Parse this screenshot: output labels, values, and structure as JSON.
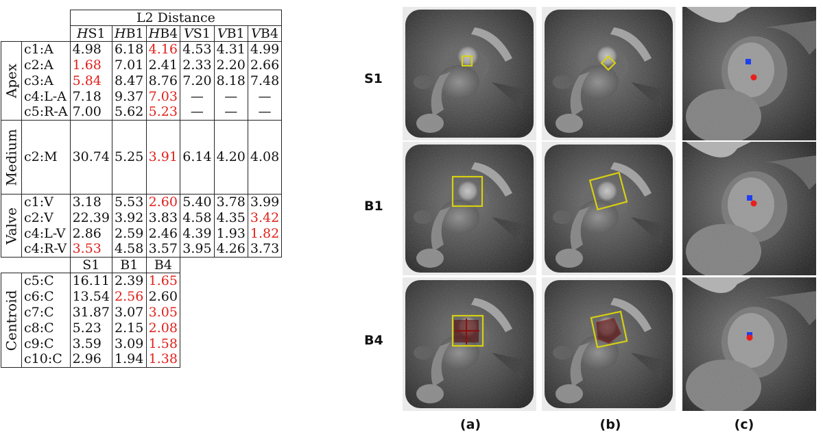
{
  "table": {
    "header_title": "L2 Distance",
    "col_headers": [
      {
        "prefix": "H",
        "suffix": "S1"
      },
      {
        "prefix": "H",
        "suffix": "B1"
      },
      {
        "prefix": "H",
        "suffix": "B4"
      },
      {
        "prefix": "V",
        "suffix": "S1"
      },
      {
        "prefix": "V",
        "suffix": "B1"
      },
      {
        "prefix": "V",
        "suffix": "B4"
      }
    ],
    "groups": {
      "apex": "Apex",
      "medium": "Medium",
      "valve": "Valve",
      "centroid": "Centroid"
    },
    "apex_rows": [
      {
        "label": "c1:A",
        "values": [
          "4.98",
          "6.18",
          "4.16",
          "4.53",
          "4.31",
          "4.99"
        ],
        "red": [
          2
        ]
      },
      {
        "label": "c2:A",
        "values": [
          "1.68",
          "7.01",
          "2.41",
          "2.33",
          "2.20",
          "2.66"
        ],
        "red": [
          0
        ]
      },
      {
        "label": "c3:A",
        "values": [
          "5.84",
          "8.47",
          "8.76",
          "7.20",
          "8.18",
          "7.48"
        ],
        "red": [
          0
        ]
      },
      {
        "label": "c4:L-A",
        "values": [
          "7.18",
          "9.37",
          "7.03",
          "—",
          "—",
          "—"
        ],
        "red": [
          2
        ]
      },
      {
        "label": "c5:R-A",
        "values": [
          "7.00",
          "5.62",
          "5.23",
          "—",
          "—",
          "—"
        ],
        "red": [
          2
        ]
      }
    ],
    "medium_rows": [
      {
        "label": "c2:M",
        "values": [
          "30.74",
          "5.25",
          "3.91",
          "6.14",
          "4.20",
          "4.08"
        ],
        "red": [
          2
        ]
      }
    ],
    "valve_rows": [
      {
        "label": "c1:V",
        "values": [
          "3.18",
          "5.53",
          "2.60",
          "5.40",
          "3.78",
          "3.99"
        ],
        "red": [
          2
        ]
      },
      {
        "label": "c2:V",
        "values": [
          "22.39",
          "3.92",
          "3.83",
          "4.58",
          "4.35",
          "3.42"
        ],
        "red": [
          5
        ]
      },
      {
        "label": "c4:L-V",
        "values": [
          "2.86",
          "2.59",
          "2.46",
          "4.39",
          "1.93",
          "1.82"
        ],
        "red": [
          5
        ]
      },
      {
        "label": "c4:R-V",
        "values": [
          "3.53",
          "4.58",
          "3.57",
          "3.95",
          "4.26",
          "3.73"
        ],
        "red": [
          0
        ]
      }
    ],
    "centroid_headers": [
      "S1",
      "B1",
      "B4"
    ],
    "centroid_rows": [
      {
        "label": "c5:C",
        "values": [
          "16.11",
          "2.39",
          "1.65"
        ],
        "red": [
          2
        ]
      },
      {
        "label": "c6:C",
        "values": [
          "13.54",
          "2.56",
          "2.60"
        ],
        "red": [
          1
        ]
      },
      {
        "label": "c7:C",
        "values": [
          "31.87",
          "3.07",
          "3.05"
        ],
        "red": [
          2
        ]
      },
      {
        "label": "c8:C",
        "values": [
          "5.23",
          "2.15",
          "2.08"
        ],
        "red": [
          2
        ]
      },
      {
        "label": "c9:C",
        "values": [
          "3.59",
          "3.09",
          "1.58"
        ],
        "red": [
          2
        ]
      },
      {
        "label": "c10:C",
        "values": [
          "2.96",
          "1.94",
          "1.38"
        ],
        "red": [
          2
        ]
      }
    ]
  },
  "figure": {
    "row_labels": [
      "S1",
      "B1",
      "B4"
    ],
    "col_labels": [
      "(a)",
      "(b)",
      "(c)"
    ],
    "colors": {
      "box": "#d8d010",
      "red_text": "#e0201b",
      "marker_red": "#e8201b",
      "marker_blue": "#1f3ff0"
    }
  }
}
